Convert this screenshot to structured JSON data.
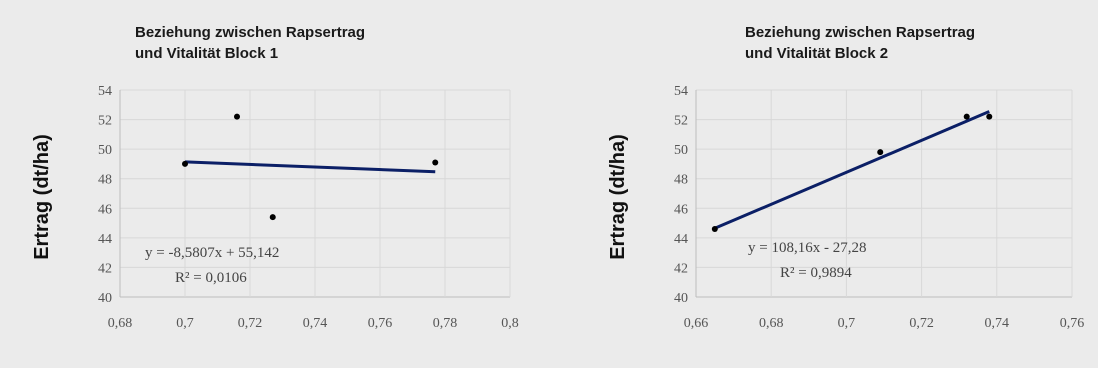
{
  "chart_data": [
    {
      "type": "scatter",
      "title_lines": [
        "Beziehung zwischen Rapsertrag",
        "und Vitalität Block 1"
      ],
      "xlabel": "",
      "ylabel": "Ertrag (dt/ha)",
      "xlim": [
        0.68,
        0.8
      ],
      "ylim": [
        40,
        54
      ],
      "xticks": [
        0.68,
        0.7,
        0.72,
        0.74,
        0.76,
        0.78,
        0.8
      ],
      "yticks": [
        40,
        42,
        44,
        46,
        48,
        50,
        52,
        54
      ],
      "xtick_labels": [
        "0,68",
        "0,7",
        "0,72",
        "0,74",
        "0,76",
        "0,78",
        "0,8"
      ],
      "ytick_labels": [
        "40",
        "42",
        "44",
        "46",
        "48",
        "50",
        "52",
        "54"
      ],
      "points": [
        {
          "x": 0.7,
          "y": 49.0
        },
        {
          "x": 0.716,
          "y": 52.2
        },
        {
          "x": 0.727,
          "y": 45.4
        },
        {
          "x": 0.777,
          "y": 49.1
        }
      ],
      "trendline": {
        "slope": -8.5807,
        "intercept": 55.142,
        "x_range": [
          0.7,
          0.777
        ]
      },
      "equation_lines": [
        "y = -8,5807x + 55,142",
        "R² = 0,0106"
      ],
      "grid": true
    },
    {
      "type": "scatter",
      "title_lines": [
        "Beziehung zwischen Rapsertrag",
        "und Vitalität Block 2"
      ],
      "xlabel": "",
      "ylabel": "Ertrag (dt/ha)",
      "xlim": [
        0.66,
        0.76
      ],
      "ylim": [
        40,
        54
      ],
      "xticks": [
        0.66,
        0.68,
        0.7,
        0.72,
        0.74,
        0.76
      ],
      "yticks": [
        40,
        42,
        44,
        46,
        48,
        50,
        52,
        54
      ],
      "xtick_labels": [
        "0,66",
        "0,68",
        "0,7",
        "0,72",
        "0,74",
        "0,76"
      ],
      "ytick_labels": [
        "40",
        "42",
        "44",
        "46",
        "48",
        "50",
        "52",
        "54"
      ],
      "points": [
        {
          "x": 0.665,
          "y": 44.6
        },
        {
          "x": 0.709,
          "y": 49.8
        },
        {
          "x": 0.732,
          "y": 52.2
        },
        {
          "x": 0.738,
          "y": 52.2
        }
      ],
      "trendline": {
        "slope": 108.16,
        "intercept": -27.28,
        "x_range": [
          0.665,
          0.738
        ]
      },
      "equation_lines": [
        "y = 108,16x - 27,28",
        "R² = 0,9894"
      ],
      "grid": true
    }
  ]
}
